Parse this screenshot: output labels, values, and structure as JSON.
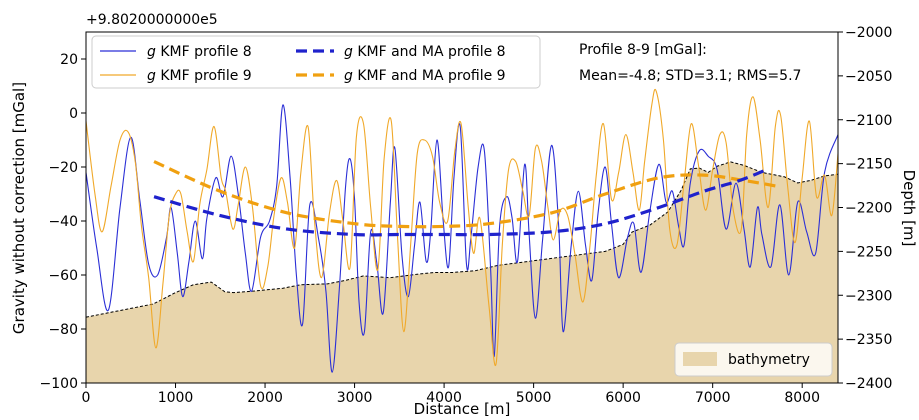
{
  "chart_data": {
    "type": "line",
    "offset_text": "+9.8020000000e5",
    "xlabel": "Distance [m]",
    "ylabel": "Gravity without correction [mGal]",
    "y2label": "Depth [m]",
    "xlim": [
      0,
      8400
    ],
    "ylim": [
      -100,
      30
    ],
    "y2lim": [
      -2400,
      -2000
    ],
    "xticks": [
      0,
      1000,
      2000,
      3000,
      4000,
      5000,
      6000,
      7000,
      8000
    ],
    "yticks": [
      -100,
      -80,
      -60,
      -40,
      -20,
      0,
      20
    ],
    "y2ticks": [
      -2400,
      -2350,
      -2300,
      -2250,
      -2200,
      -2150,
      -2100,
      -2050,
      -2000
    ],
    "stats_title": "Profile 8-9 [mGal]:",
    "stats_line": "Mean=-4.8; STD=3.1; RMS=5.7",
    "legend": [
      {
        "label": "g KMF profile 8",
        "sym": "g",
        "rest": " KMF profile 8",
        "color": "#2b2fd6",
        "style": "solid"
      },
      {
        "label": "g KMF profile 9",
        "sym": "g",
        "rest": " KMF profile 9",
        "color": "#f0a92a",
        "style": "solid"
      },
      {
        "label": "g KMF and MA profile 8",
        "sym": "g",
        "rest": " KMF and MA profile 8",
        "color": "#1f22cc",
        "style": "dashed"
      },
      {
        "label": "g KMF and MA profile 9",
        "sym": "g",
        "rest": " KMF and MA profile 9",
        "color": "#f0a010",
        "style": "dashed"
      }
    ],
    "area_legend": {
      "label": "bathymetry",
      "color": "#e8d5ac"
    },
    "series": [
      {
        "name": "g KMF profile 8",
        "color": "#2b2fd6",
        "width": 1.1,
        "dash": "",
        "points": [
          [
            0,
            -22
          ],
          [
            120,
            -50
          ],
          [
            250,
            -73
          ],
          [
            380,
            -35
          ],
          [
            500,
            -9
          ],
          [
            600,
            -32
          ],
          [
            700,
            -56
          ],
          [
            800,
            -60
          ],
          [
            900,
            -46
          ],
          [
            950,
            -35
          ],
          [
            1020,
            -52
          ],
          [
            1080,
            -68
          ],
          [
            1150,
            -55
          ],
          [
            1220,
            -40
          ],
          [
            1300,
            -54
          ],
          [
            1350,
            -39
          ],
          [
            1450,
            -24
          ],
          [
            1530,
            -31
          ],
          [
            1620,
            -16
          ],
          [
            1700,
            -30
          ],
          [
            1780,
            -52
          ],
          [
            1850,
            -66
          ],
          [
            1950,
            -46
          ],
          [
            2050,
            -40
          ],
          [
            2130,
            -27
          ],
          [
            2200,
            3
          ],
          [
            2280,
            -24
          ],
          [
            2350,
            -60
          ],
          [
            2420,
            -78
          ],
          [
            2500,
            -34
          ],
          [
            2600,
            -47
          ],
          [
            2680,
            -66
          ],
          [
            2750,
            -96
          ],
          [
            2830,
            -65
          ],
          [
            2900,
            -27
          ],
          [
            2950,
            -17
          ],
          [
            3000,
            -32
          ],
          [
            3050,
            -70
          ],
          [
            3110,
            -81
          ],
          [
            3180,
            -44
          ],
          [
            3250,
            -56
          ],
          [
            3320,
            -74
          ],
          [
            3400,
            -33
          ],
          [
            3450,
            -13
          ],
          [
            3530,
            -53
          ],
          [
            3600,
            -68
          ],
          [
            3670,
            -49
          ],
          [
            3730,
            -33
          ],
          [
            3800,
            -55
          ],
          [
            3850,
            -44
          ],
          [
            3920,
            -10
          ],
          [
            3990,
            -40
          ],
          [
            4050,
            -57
          ],
          [
            4110,
            -24
          ],
          [
            4180,
            -5
          ],
          [
            4250,
            -56
          ],
          [
            4300,
            -46
          ],
          [
            4380,
            -20
          ],
          [
            4450,
            -14
          ],
          [
            4520,
            -58
          ],
          [
            4560,
            -90
          ],
          [
            4620,
            -42
          ],
          [
            4700,
            -31
          ],
          [
            4760,
            -39
          ],
          [
            4820,
            -55
          ],
          [
            4900,
            -19
          ],
          [
            4950,
            -45
          ],
          [
            5020,
            -76
          ],
          [
            5100,
            -47
          ],
          [
            5200,
            -12
          ],
          [
            5280,
            -42
          ],
          [
            5330,
            -81
          ],
          [
            5420,
            -49
          ],
          [
            5500,
            -29
          ],
          [
            5580,
            -49
          ],
          [
            5650,
            -62
          ],
          [
            5720,
            -37
          ],
          [
            5800,
            -20
          ],
          [
            5870,
            -41
          ],
          [
            5950,
            -61
          ],
          [
            6050,
            -46
          ],
          [
            6120,
            -41
          ],
          [
            6200,
            -59
          ],
          [
            6300,
            -36
          ],
          [
            6400,
            -19
          ],
          [
            6480,
            -33
          ],
          [
            6550,
            -29
          ],
          [
            6620,
            -42
          ],
          [
            6680,
            -49
          ],
          [
            6750,
            -26
          ],
          [
            6850,
            -14
          ],
          [
            6950,
            -16
          ],
          [
            7050,
            -21
          ],
          [
            7150,
            -43
          ],
          [
            7260,
            -26
          ],
          [
            7350,
            -43
          ],
          [
            7420,
            -57
          ],
          [
            7500,
            -35
          ],
          [
            7550,
            -45
          ],
          [
            7650,
            -57
          ],
          [
            7750,
            -34
          ],
          [
            7850,
            -60
          ],
          [
            7950,
            -33
          ],
          [
            8050,
            -44
          ],
          [
            8150,
            -52
          ],
          [
            8250,
            -22
          ],
          [
            8400,
            -8
          ]
        ]
      },
      {
        "name": "g KMF profile 9",
        "color": "#f0a92a",
        "width": 1.1,
        "dash": "",
        "points": [
          [
            0,
            -3
          ],
          [
            100,
            -30
          ],
          [
            180,
            -44
          ],
          [
            280,
            -27
          ],
          [
            380,
            -10
          ],
          [
            470,
            -7
          ],
          [
            550,
            -18
          ],
          [
            620,
            -42
          ],
          [
            700,
            -61
          ],
          [
            780,
            -87
          ],
          [
            860,
            -63
          ],
          [
            930,
            -38
          ],
          [
            1000,
            -30
          ],
          [
            1060,
            -30
          ],
          [
            1130,
            -44
          ],
          [
            1200,
            -55
          ],
          [
            1270,
            -34
          ],
          [
            1350,
            -21
          ],
          [
            1430,
            -5
          ],
          [
            1510,
            -24
          ],
          [
            1560,
            -29
          ],
          [
            1640,
            -43
          ],
          [
            1700,
            -34
          ],
          [
            1780,
            -20
          ],
          [
            1860,
            -35
          ],
          [
            1950,
            -64
          ],
          [
            2030,
            -57
          ],
          [
            2100,
            -38
          ],
          [
            2180,
            -24
          ],
          [
            2250,
            -33
          ],
          [
            2330,
            -50
          ],
          [
            2400,
            -22
          ],
          [
            2480,
            -5
          ],
          [
            2550,
            -39
          ],
          [
            2630,
            -61
          ],
          [
            2720,
            -37
          ],
          [
            2800,
            -25
          ],
          [
            2870,
            -40
          ],
          [
            2950,
            -57
          ],
          [
            3020,
            -9
          ],
          [
            3100,
            -4
          ],
          [
            3180,
            -35
          ],
          [
            3260,
            -58
          ],
          [
            3330,
            -17
          ],
          [
            3410,
            -3
          ],
          [
            3480,
            -46
          ],
          [
            3550,
            -81
          ],
          [
            3630,
            -47
          ],
          [
            3700,
            -15
          ],
          [
            3780,
            -10
          ],
          [
            3870,
            -16
          ],
          [
            3950,
            -33
          ],
          [
            4040,
            -40
          ],
          [
            4120,
            -14
          ],
          [
            4190,
            -4
          ],
          [
            4270,
            -35
          ],
          [
            4330,
            -52
          ],
          [
            4400,
            -39
          ],
          [
            4500,
            -71
          ],
          [
            4580,
            -93
          ],
          [
            4650,
            -49
          ],
          [
            4720,
            -21
          ],
          [
            4800,
            -18
          ],
          [
            4880,
            -29
          ],
          [
            4950,
            -38
          ],
          [
            5020,
            -13
          ],
          [
            5090,
            -18
          ],
          [
            5160,
            -35
          ],
          [
            5220,
            -47
          ],
          [
            5300,
            -36
          ],
          [
            5380,
            -38
          ],
          [
            5460,
            -52
          ],
          [
            5550,
            -70
          ],
          [
            5630,
            -49
          ],
          [
            5700,
            -23
          ],
          [
            5780,
            -4
          ],
          [
            5870,
            -32
          ],
          [
            5950,
            -22
          ],
          [
            6030,
            -8
          ],
          [
            6110,
            -22
          ],
          [
            6180,
            -36
          ],
          [
            6240,
            -18
          ],
          [
            6320,
            3
          ],
          [
            6370,
            8
          ],
          [
            6450,
            -10
          ],
          [
            6520,
            -43
          ],
          [
            6600,
            -49
          ],
          [
            6680,
            -26
          ],
          [
            6760,
            -4
          ],
          [
            6840,
            -19
          ],
          [
            6920,
            -36
          ],
          [
            7000,
            -21
          ],
          [
            7080,
            -8
          ],
          [
            7150,
            -11
          ],
          [
            7230,
            -36
          ],
          [
            7320,
            -43
          ],
          [
            7380,
            -8
          ],
          [
            7450,
            6
          ],
          [
            7530,
            -10
          ],
          [
            7620,
            -35
          ],
          [
            7700,
            -5
          ],
          [
            7760,
            -1
          ],
          [
            7840,
            -28
          ],
          [
            7920,
            -48
          ],
          [
            8000,
            -24
          ],
          [
            8080,
            -3
          ],
          [
            8160,
            -31
          ],
          [
            8250,
            -23
          ],
          [
            8330,
            -38
          ],
          [
            8400,
            -15
          ]
        ]
      },
      {
        "name": "g KMF and MA profile 9",
        "color": "#f0a010",
        "width": 3.2,
        "dash": "11,6",
        "points": [
          [
            760,
            -18
          ],
          [
            1500,
            -29
          ],
          [
            2250,
            -37
          ],
          [
            3000,
            -41
          ],
          [
            3500,
            -42
          ],
          [
            4000,
            -42
          ],
          [
            4500,
            -41
          ],
          [
            5200,
            -37
          ],
          [
            5800,
            -30
          ],
          [
            6400,
            -24
          ],
          [
            6900,
            -23
          ],
          [
            7350,
            -25
          ],
          [
            7700,
            -27
          ]
        ]
      },
      {
        "name": "g KMF and MA profile 8",
        "color": "#1f22cc",
        "width": 3.2,
        "dash": "11,6",
        "points": [
          [
            760,
            -31
          ],
          [
            1500,
            -38
          ],
          [
            2250,
            -43
          ],
          [
            3000,
            -45
          ],
          [
            3500,
            -45
          ],
          [
            4000,
            -45
          ],
          [
            4500,
            -45
          ],
          [
            5200,
            -44
          ],
          [
            5800,
            -41
          ],
          [
            6400,
            -35
          ],
          [
            6900,
            -29
          ],
          [
            7300,
            -25
          ],
          [
            7600,
            -21
          ]
        ]
      }
    ],
    "bathymetry": [
      [
        0,
        -2325
      ],
      [
        250,
        -2320
      ],
      [
        500,
        -2315
      ],
      [
        750,
        -2310
      ],
      [
        1000,
        -2297
      ],
      [
        1200,
        -2288
      ],
      [
        1400,
        -2285
      ],
      [
        1550,
        -2296
      ],
      [
        1650,
        -2297
      ],
      [
        1900,
        -2295
      ],
      [
        2200,
        -2292
      ],
      [
        2400,
        -2288
      ],
      [
        2700,
        -2287
      ],
      [
        2900,
        -2283
      ],
      [
        3100,
        -2278
      ],
      [
        3400,
        -2280
      ],
      [
        3700,
        -2276
      ],
      [
        3900,
        -2274
      ],
      [
        4100,
        -2274
      ],
      [
        4350,
        -2272
      ],
      [
        4600,
        -2266
      ],
      [
        4900,
        -2262
      ],
      [
        5200,
        -2258
      ],
      [
        5500,
        -2254
      ],
      [
        5800,
        -2250
      ],
      [
        6000,
        -2242
      ],
      [
        6100,
        -2228
      ],
      [
        6300,
        -2220
      ],
      [
        6500,
        -2205
      ],
      [
        6650,
        -2180
      ],
      [
        6750,
        -2156
      ],
      [
        6850,
        -2155
      ],
      [
        6950,
        -2160
      ],
      [
        7050,
        -2153
      ],
      [
        7200,
        -2148
      ],
      [
        7350,
        -2152
      ],
      [
        7550,
        -2160
      ],
      [
        7800,
        -2165
      ],
      [
        7950,
        -2172
      ],
      [
        8100,
        -2169
      ],
      [
        8250,
        -2164
      ],
      [
        8400,
        -2162
      ]
    ]
  }
}
